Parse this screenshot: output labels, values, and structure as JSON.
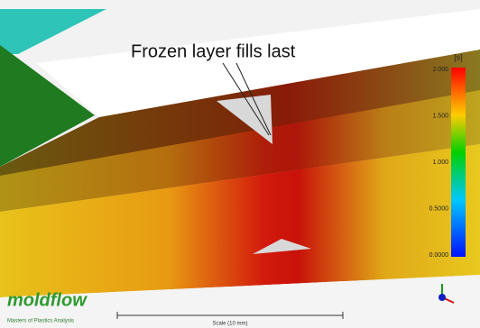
{
  "annotation": "Frozen layer fills last",
  "legend": {
    "unit": "[s]",
    "labels": [
      "2.000",
      "1.500",
      "1.000",
      "0.5000",
      "0.0000"
    ]
  },
  "logo": {
    "name": "moldflow",
    "tagline": "Masters of Plastics Analysis"
  },
  "scale_bar": "Scale (10 mm)"
}
